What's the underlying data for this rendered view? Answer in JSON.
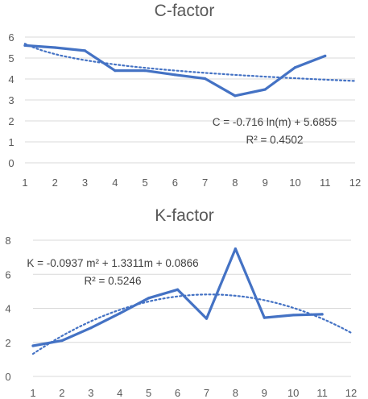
{
  "chart_data": [
    {
      "type": "line",
      "title": "C-factor",
      "xlabel": "",
      "ylabel": "",
      "x": [
        1,
        2,
        3,
        4,
        5,
        6,
        7,
        8,
        9,
        10,
        11
      ],
      "xticks": [
        "1",
        "2",
        "3",
        "4",
        "5",
        "6",
        "7",
        "8",
        "9",
        "10",
        "11",
        "12"
      ],
      "xlim": [
        1,
        12
      ],
      "yticks": [
        "0",
        "1",
        "2",
        "3",
        "4",
        "5",
        "6"
      ],
      "ylim": [
        0,
        6
      ],
      "grid": true,
      "series": [
        {
          "values": [
            5.6,
            5.5,
            5.35,
            4.4,
            4.4,
            4.2,
            4.02,
            3.2,
            3.5,
            4.55,
            5.1
          ]
        }
      ],
      "trendline": {
        "type": "logarithmic",
        "a": -0.716,
        "b": 5.6855,
        "equation": "C = -0.716 ln(m) + 5.6855",
        "r2": "R² = 0.4502"
      },
      "color": "#4472c4"
    },
    {
      "type": "line",
      "title": "K-factor",
      "xlabel": "",
      "ylabel": "",
      "x": [
        1,
        2,
        3,
        4,
        5,
        6,
        7,
        8,
        9,
        10,
        11
      ],
      "xticks": [
        "1",
        "2",
        "3",
        "4",
        "5",
        "6",
        "7",
        "8",
        "9",
        "10",
        "11",
        "12"
      ],
      "xlim": [
        1,
        12
      ],
      "yticks": [
        "0",
        "2",
        "4",
        "6",
        "8"
      ],
      "ylim": [
        0,
        8
      ],
      "grid": true,
      "series": [
        {
          "values": [
            1.8,
            2.1,
            2.85,
            3.7,
            4.6,
            5.1,
            3.4,
            7.5,
            3.45,
            3.6,
            3.65
          ]
        }
      ],
      "trendline": {
        "type": "polynomial",
        "a": -0.0937,
        "b": 1.3311,
        "c": 0.0866,
        "equation": "K = -0.0937 m² + 1.3311m + 0.0866",
        "r2": "R² = 0.5246"
      },
      "color": "#4472c4"
    }
  ]
}
